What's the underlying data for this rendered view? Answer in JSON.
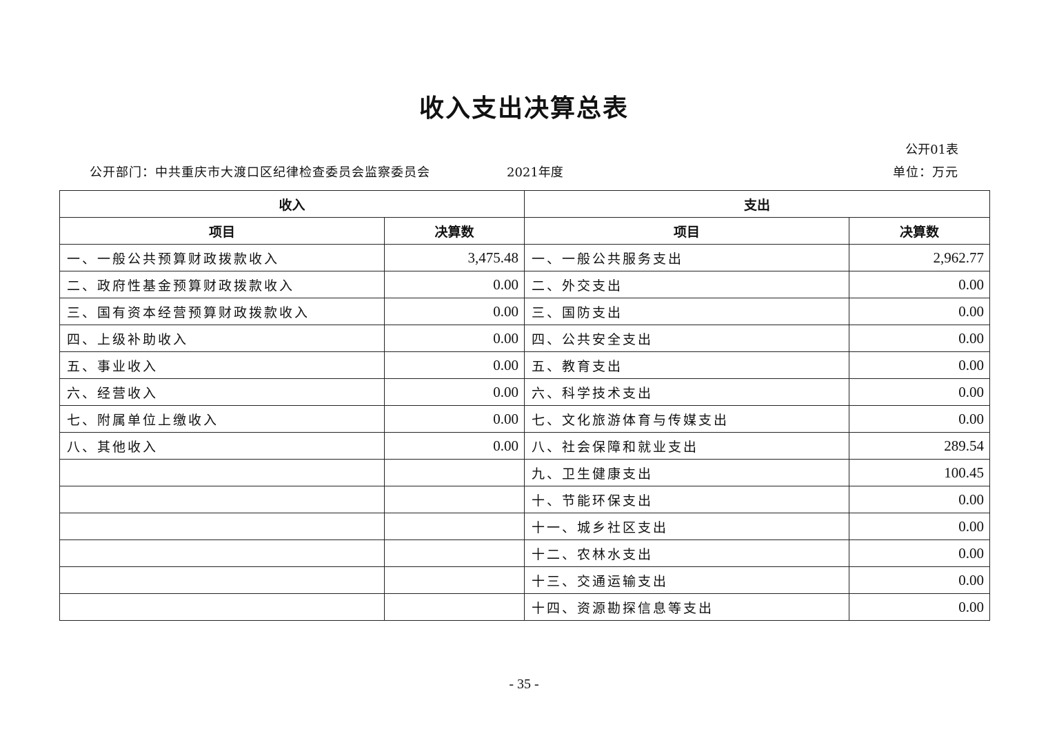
{
  "title": "收入支出决算总表",
  "form_no": "公开01表",
  "department": "公开部门：中共重庆市大渡口区纪律检查委员会监察委员会",
  "year": "2021年度",
  "unit": "单位：万元",
  "table": {
    "income_header": "收入",
    "expense_header": "支出",
    "col_item": "项目",
    "col_amount": "决算数",
    "rows": [
      {
        "income_item": "一、一般公共预算财政拨款收入",
        "income_amount": "3,475.48",
        "expense_item": "一、一般公共服务支出",
        "expense_amount": "2,962.77"
      },
      {
        "income_item": "二、政府性基金预算财政拨款收入",
        "income_amount": "0.00",
        "expense_item": "二、外交支出",
        "expense_amount": "0.00"
      },
      {
        "income_item": "三、国有资本经营预算财政拨款收入",
        "income_amount": "0.00",
        "expense_item": "三、国防支出",
        "expense_amount": "0.00"
      },
      {
        "income_item": "四、上级补助收入",
        "income_amount": "0.00",
        "expense_item": "四、公共安全支出",
        "expense_amount": "0.00"
      },
      {
        "income_item": "五、事业收入",
        "income_amount": "0.00",
        "expense_item": "五、教育支出",
        "expense_amount": "0.00"
      },
      {
        "income_item": "六、经营收入",
        "income_amount": "0.00",
        "expense_item": "六、科学技术支出",
        "expense_amount": "0.00"
      },
      {
        "income_item": "七、附属单位上缴收入",
        "income_amount": "0.00",
        "expense_item": "七、文化旅游体育与传媒支出",
        "expense_amount": "0.00"
      },
      {
        "income_item": "八、其他收入",
        "income_amount": "0.00",
        "expense_item": "八、社会保障和就业支出",
        "expense_amount": "289.54"
      },
      {
        "income_item": "",
        "income_amount": "",
        "expense_item": "九、卫生健康支出",
        "expense_amount": "100.45"
      },
      {
        "income_item": "",
        "income_amount": "",
        "expense_item": "十、节能环保支出",
        "expense_amount": "0.00"
      },
      {
        "income_item": "",
        "income_amount": "",
        "expense_item": "十一、城乡社区支出",
        "expense_amount": "0.00"
      },
      {
        "income_item": "",
        "income_amount": "",
        "expense_item": "十二、农林水支出",
        "expense_amount": "0.00"
      },
      {
        "income_item": "",
        "income_amount": "",
        "expense_item": "十三、交通运输支出",
        "expense_amount": "0.00"
      },
      {
        "income_item": "",
        "income_amount": "",
        "expense_item": "十四、资源勘探信息等支出",
        "expense_amount": "0.00"
      }
    ]
  },
  "page_number": "- 35 -"
}
